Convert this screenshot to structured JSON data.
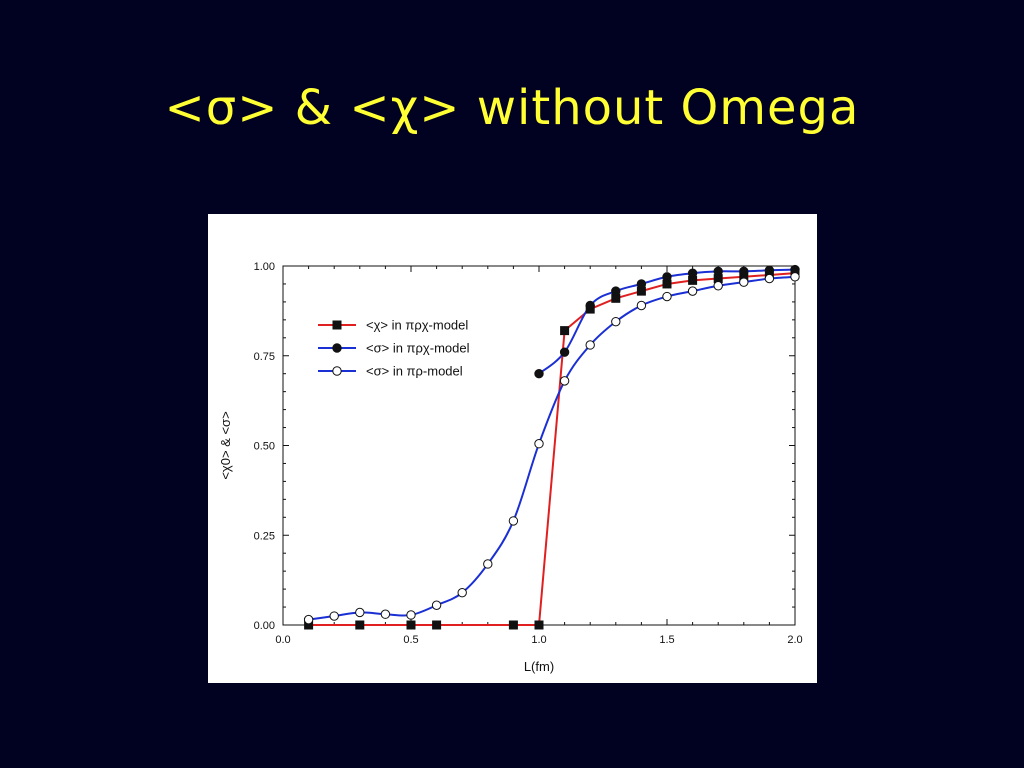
{
  "slide": {
    "title": "<σ> & <χ> without Omega"
  },
  "chart_data": {
    "type": "line",
    "xlabel": "L(fm)",
    "ylabel": "<χ0> & <σ>",
    "xlim": [
      0.0,
      2.0
    ],
    "ylim": [
      0.0,
      1.0
    ],
    "xticks": [
      "0.0",
      "0.5",
      "1.0",
      "1.5",
      "2.0"
    ],
    "yticks": [
      "0.00",
      "0.25",
      "0.50",
      "0.75",
      "1.00"
    ],
    "grid": false,
    "legend_position": "upper-left",
    "series": [
      {
        "name": "<χ> in πρχ-model",
        "color": "#e02020",
        "marker": "filled-square",
        "x": [
          0.1,
          0.3,
          0.5,
          0.6,
          0.9,
          1.0,
          1.1,
          1.2,
          1.3,
          1.4,
          1.5,
          1.6,
          1.7,
          1.8,
          1.9,
          2.0
        ],
        "y": [
          0.0,
          0.0,
          0.0,
          0.0,
          0.0,
          0.0,
          0.82,
          0.88,
          0.91,
          0.93,
          0.95,
          0.96,
          0.965,
          0.97,
          0.975,
          0.98
        ]
      },
      {
        "name": "<σ> in πρχ-model",
        "color": "#1a2fd4",
        "marker": "filled-circle",
        "x": [
          1.0,
          1.1,
          1.2,
          1.3,
          1.4,
          1.5,
          1.6,
          1.7,
          1.8,
          1.9,
          2.0
        ],
        "y": [
          0.7,
          0.76,
          0.89,
          0.93,
          0.95,
          0.97,
          0.98,
          0.985,
          0.985,
          0.988,
          0.99
        ]
      },
      {
        "name": "<σ> in πρ-model",
        "color": "#1a2fd4",
        "marker": "open-circle",
        "x": [
          0.1,
          0.2,
          0.3,
          0.4,
          0.5,
          0.6,
          0.7,
          0.8,
          0.9,
          1.0,
          1.1,
          1.2,
          1.3,
          1.4,
          1.5,
          1.6,
          1.7,
          1.8,
          1.9,
          2.0
        ],
        "y": [
          0.015,
          0.025,
          0.035,
          0.03,
          0.028,
          0.055,
          0.09,
          0.17,
          0.29,
          0.505,
          0.68,
          0.78,
          0.845,
          0.89,
          0.915,
          0.93,
          0.945,
          0.955,
          0.965,
          0.97
        ]
      }
    ]
  }
}
